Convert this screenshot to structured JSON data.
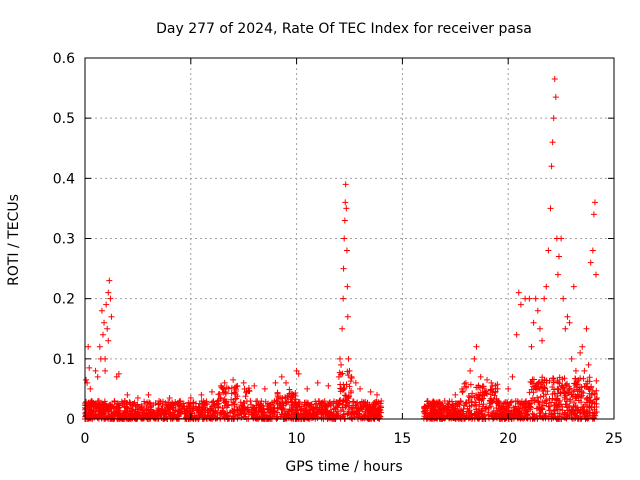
{
  "chart_data": {
    "type": "scatter",
    "title": "Day 277 of 2024, Rate Of TEC Index for receiver pasa",
    "xlabel": "GPS time / hours",
    "ylabel": "ROTI / TECUs",
    "xlim": [
      0,
      25
    ],
    "ylim": [
      0,
      0.6
    ],
    "xticks": [
      0,
      5,
      10,
      15,
      20,
      25
    ],
    "yticks": [
      0,
      0.1,
      0.2,
      0.3,
      0.4,
      0.5,
      0.6
    ],
    "xtick_labels": [
      "0",
      "5",
      "10",
      "15",
      "20",
      "25"
    ],
    "ytick_labels": [
      "0",
      "0.1",
      "0.2",
      "0.3",
      "0.4",
      "0.5",
      "0.6"
    ],
    "grid": true,
    "marker": "+",
    "color": "#ff0000",
    "data_gap_hours": [
      14.0,
      16.0
    ],
    "series": [
      {
        "name": "",
        "points": [
          [
            0.05,
            0.065
          ],
          [
            0.1,
            0.06
          ],
          [
            0.15,
            0.12
          ],
          [
            0.2,
            0.085
          ],
          [
            0.25,
            0.05
          ],
          [
            0.3,
            0.03
          ],
          [
            0.5,
            0.08
          ],
          [
            0.6,
            0.07
          ],
          [
            0.7,
            0.12
          ],
          [
            0.75,
            0.1
          ],
          [
            0.8,
            0.18
          ],
          [
            0.85,
            0.14
          ],
          [
            0.9,
            0.16
          ],
          [
            0.95,
            0.1
          ],
          [
            1.0,
            0.19
          ],
          [
            1.05,
            0.15
          ],
          [
            1.1,
            0.21
          ],
          [
            1.15,
            0.23
          ],
          [
            1.2,
            0.2
          ],
          [
            1.25,
            0.17
          ],
          [
            1.1,
            0.13
          ],
          [
            0.95,
            0.08
          ],
          [
            1.5,
            0.07
          ],
          [
            1.6,
            0.075
          ],
          [
            2.0,
            0.04
          ],
          [
            2.5,
            0.035
          ],
          [
            3.0,
            0.04
          ],
          [
            3.5,
            0.03
          ],
          [
            4.0,
            0.035
          ],
          [
            4.5,
            0.03
          ],
          [
            5.0,
            0.035
          ],
          [
            5.5,
            0.04
          ],
          [
            6.0,
            0.045
          ],
          [
            6.5,
            0.05
          ],
          [
            6.6,
            0.06
          ],
          [
            7.0,
            0.065
          ],
          [
            7.2,
            0.055
          ],
          [
            7.5,
            0.06
          ],
          [
            8.0,
            0.055
          ],
          [
            8.5,
            0.05
          ],
          [
            9.0,
            0.06
          ],
          [
            9.3,
            0.07
          ],
          [
            9.5,
            0.06
          ],
          [
            10.0,
            0.08
          ],
          [
            10.1,
            0.075
          ],
          [
            10.5,
            0.05
          ],
          [
            11.0,
            0.06
          ],
          [
            11.5,
            0.055
          ],
          [
            12.0,
            0.07
          ],
          [
            12.05,
            0.1
          ],
          [
            12.1,
            0.09
          ],
          [
            12.15,
            0.15
          ],
          [
            12.2,
            0.2
          ],
          [
            12.22,
            0.25
          ],
          [
            12.25,
            0.3
          ],
          [
            12.28,
            0.33
          ],
          [
            12.3,
            0.36
          ],
          [
            12.32,
            0.39
          ],
          [
            12.35,
            0.35
          ],
          [
            12.38,
            0.28
          ],
          [
            12.4,
            0.22
          ],
          [
            12.42,
            0.17
          ],
          [
            12.45,
            0.1
          ],
          [
            12.5,
            0.08
          ],
          [
            12.6,
            0.07
          ],
          [
            12.8,
            0.06
          ],
          [
            13.0,
            0.05
          ],
          [
            13.5,
            0.045
          ],
          [
            13.8,
            0.04
          ],
          [
            14.0,
            0.03
          ],
          [
            16.2,
            0.03
          ],
          [
            16.5,
            0.025
          ],
          [
            17.0,
            0.03
          ],
          [
            17.5,
            0.04
          ],
          [
            18.0,
            0.06
          ],
          [
            18.2,
            0.08
          ],
          [
            18.4,
            0.1
          ],
          [
            18.5,
            0.12
          ],
          [
            18.7,
            0.07
          ],
          [
            19.0,
            0.065
          ],
          [
            19.2,
            0.06
          ],
          [
            19.5,
            0.05
          ],
          [
            20.0,
            0.05
          ],
          [
            20.2,
            0.07
          ],
          [
            20.4,
            0.14
          ],
          [
            20.5,
            0.21
          ],
          [
            20.6,
            0.19
          ],
          [
            20.8,
            0.2
          ],
          [
            21.0,
            0.2
          ],
          [
            21.1,
            0.12
          ],
          [
            21.2,
            0.16
          ],
          [
            21.3,
            0.2
          ],
          [
            21.4,
            0.18
          ],
          [
            21.5,
            0.15
          ],
          [
            21.6,
            0.13
          ],
          [
            21.7,
            0.2
          ],
          [
            21.8,
            0.22
          ],
          [
            21.9,
            0.28
          ],
          [
            22.0,
            0.35
          ],
          [
            22.05,
            0.42
          ],
          [
            22.1,
            0.46
          ],
          [
            22.15,
            0.5
          ],
          [
            22.2,
            0.565
          ],
          [
            22.25,
            0.535
          ],
          [
            22.3,
            0.3
          ],
          [
            22.35,
            0.24
          ],
          [
            22.4,
            0.27
          ],
          [
            22.5,
            0.3
          ],
          [
            22.6,
            0.2
          ],
          [
            22.7,
            0.15
          ],
          [
            22.8,
            0.17
          ],
          [
            22.9,
            0.16
          ],
          [
            23.0,
            0.1
          ],
          [
            23.1,
            0.22
          ],
          [
            23.2,
            0.08
          ],
          [
            23.4,
            0.11
          ],
          [
            23.5,
            0.12
          ],
          [
            23.6,
            0.08
          ],
          [
            23.7,
            0.15
          ],
          [
            23.8,
            0.09
          ],
          [
            23.9,
            0.26
          ],
          [
            24.0,
            0.28
          ],
          [
            24.05,
            0.34
          ],
          [
            24.1,
            0.36
          ],
          [
            24.15,
            0.24
          ]
        ]
      }
    ]
  }
}
